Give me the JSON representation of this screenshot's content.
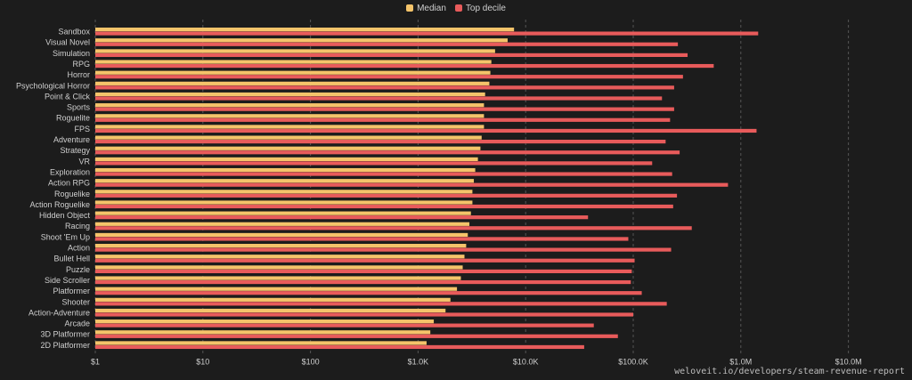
{
  "legend": [
    {
      "label": "Median",
      "color": "#f5c46a"
    },
    {
      "label": "Top decile",
      "color": "#e85b5b"
    }
  ],
  "source_text": "weloveit.io/developers/steam-revenue-report",
  "chart_data": {
    "type": "bar",
    "orientation": "horizontal",
    "xscale": "log",
    "xlim": [
      1,
      100000000
    ],
    "xticks": [
      1,
      10,
      100,
      1000,
      10000,
      100000,
      1000000,
      10000000
    ],
    "xtick_labels": [
      "$1",
      "$10",
      "$100",
      "$1.0K",
      "$10.0K",
      "$100.0K",
      "$1.0M",
      "$10.0M"
    ],
    "grid": "vertical-dashed",
    "legend_position": "top-center",
    "categories": [
      "Sandbox",
      "Visual Novel",
      "Simulation",
      "RPG",
      "Horror",
      "Psychological Horror",
      "Point & Click",
      "Sports",
      "Roguelite",
      "FPS",
      "Adventure",
      "Strategy",
      "VR",
      "Exploration",
      "Action RPG",
      "Roguelike",
      "Action Roguelike",
      "Hidden Object",
      "Racing",
      "Shoot 'Em Up",
      "Action",
      "Bullet Hell",
      "Puzzle",
      "Side Scroller",
      "Platformer",
      "Shooter",
      "Action-Adventure",
      "Arcade",
      "3D Platformer",
      "2D Platformer"
    ],
    "series": [
      {
        "name": "Median",
        "color": "#f5c46a",
        "values": [
          7800,
          6800,
          5200,
          4800,
          4700,
          4600,
          4200,
          4100,
          4100,
          4100,
          3900,
          3800,
          3600,
          3400,
          3300,
          3200,
          3200,
          3100,
          3000,
          2900,
          2800,
          2700,
          2600,
          2500,
          2300,
          2000,
          1800,
          1400,
          1300,
          1200
        ]
      },
      {
        "name": "Top decile",
        "color": "#e85b5b",
        "values": [
          1450000,
          260000,
          320000,
          560000,
          290000,
          240000,
          185000,
          240000,
          220000,
          1400000,
          200000,
          270000,
          150000,
          230000,
          760000,
          255000,
          235000,
          38000,
          350000,
          90000,
          225000,
          103000,
          97000,
          95000,
          120000,
          205000,
          100000,
          43000,
          72000,
          35000
        ]
      }
    ]
  }
}
